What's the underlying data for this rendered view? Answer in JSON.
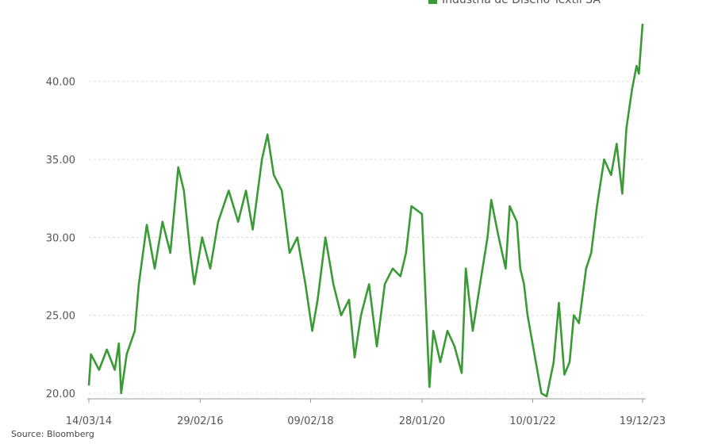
{
  "chart_data": {
    "type": "line",
    "source": "Source: Bloomberg",
    "x": [
      "2014-03-14",
      "2014-03-28",
      "2014-05-19",
      "2014-07-08",
      "2014-08-28",
      "2014-09-23",
      "2014-10-08",
      "2014-11-13",
      "2015-01-04",
      "2015-01-30",
      "2015-03-22",
      "2015-05-12",
      "2015-07-01",
      "2015-08-21",
      "2015-10-11",
      "2015-11-16",
      "2015-12-27",
      "2016-01-22",
      "2016-03-13",
      "2016-05-04",
      "2016-06-24",
      "2016-08-31",
      "2016-10-31",
      "2016-12-20",
      "2017-02-02",
      "2017-04-02",
      "2017-05-08",
      "2017-06-17",
      "2017-08-08",
      "2017-09-27",
      "2017-11-16",
      "2018-01-07",
      "2018-02-20",
      "2018-03-27",
      "2018-05-16",
      "2018-07-06",
      "2018-08-25",
      "2018-10-15",
      "2018-11-20",
      "2018-12-31",
      "2019-02-21",
      "2019-04-12",
      "2019-05-08",
      "2019-06-02",
      "2019-07-23",
      "2019-09-11",
      "2019-10-17",
      "2019-11-21",
      "2020-01-28",
      "2020-03-16",
      "2020-04-10",
      "2020-05-25",
      "2020-07-10",
      "2020-08-25",
      "2020-10-10",
      "2020-11-05",
      "2020-12-20",
      "2021-02-05",
      "2021-03-25",
      "2021-04-18",
      "2021-06-05",
      "2021-07-20",
      "2021-08-15",
      "2021-09-30",
      "2021-10-22",
      "2021-11-15",
      "2021-12-08",
      "2022-03-07",
      "2022-04-10",
      "2022-05-25",
      "2022-06-28",
      "2022-08-02",
      "2022-09-05",
      "2022-10-02",
      "2022-11-04",
      "2022-12-20",
      "2023-01-22",
      "2023-02-28",
      "2023-04-15",
      "2023-05-30",
      "2023-07-05",
      "2023-08-10",
      "2023-09-06",
      "2023-10-12",
      "2023-11-10",
      "2023-11-25",
      "2023-12-19"
    ],
    "series": [
      {
        "name": "Industria de Diseño Textil SA",
        "color": "#3a9a35",
        "values": [
          20.5,
          22.5,
          21.5,
          22.8,
          21.5,
          23.2,
          20.0,
          22.5,
          24,
          27,
          30.8,
          28,
          31,
          29,
          34.5,
          33,
          29,
          27,
          30,
          28,
          31,
          33,
          31,
          33,
          30.5,
          35,
          36.6,
          34,
          33,
          29,
          30,
          27,
          24,
          26,
          30,
          27,
          25,
          26,
          22.3,
          25,
          27,
          23,
          25,
          27,
          28,
          27.5,
          29,
          32,
          31.5,
          20.4,
          24,
          22,
          24,
          23,
          21.3,
          28,
          24,
          27,
          30,
          32.4,
          30,
          28,
          32,
          31,
          28,
          27,
          25,
          20.0,
          19.8,
          22,
          25.8,
          21.2,
          22,
          25,
          24.5,
          28,
          29,
          32,
          35,
          34,
          36,
          32.8,
          37,
          39.5,
          41,
          40.5,
          43.7
        ]
      }
    ],
    "xlim": [
      "2014-03-14",
      "2023-12-19"
    ],
    "xticks": [
      {
        "value": "2014-03-14",
        "label": "14/03/14"
      },
      {
        "value": "2016-02-29",
        "label": "29/02/16"
      },
      {
        "value": "2018-02-09",
        "label": "09/02/18"
      },
      {
        "value": "2020-01-28",
        "label": "28/01/20"
      },
      {
        "value": "2022-01-10",
        "label": "10/01/22"
      },
      {
        "value": "2023-12-19",
        "label": "19/12/23"
      }
    ],
    "ylim": [
      20,
      43.8
    ],
    "yticks": [
      {
        "value": 20,
        "label": "20.00"
      },
      {
        "value": 25,
        "label": "25.00"
      },
      {
        "value": 30,
        "label": "30.00"
      },
      {
        "value": 35,
        "label": "35.00"
      },
      {
        "value": 40,
        "label": "40.00"
      }
    ],
    "grid": true
  }
}
